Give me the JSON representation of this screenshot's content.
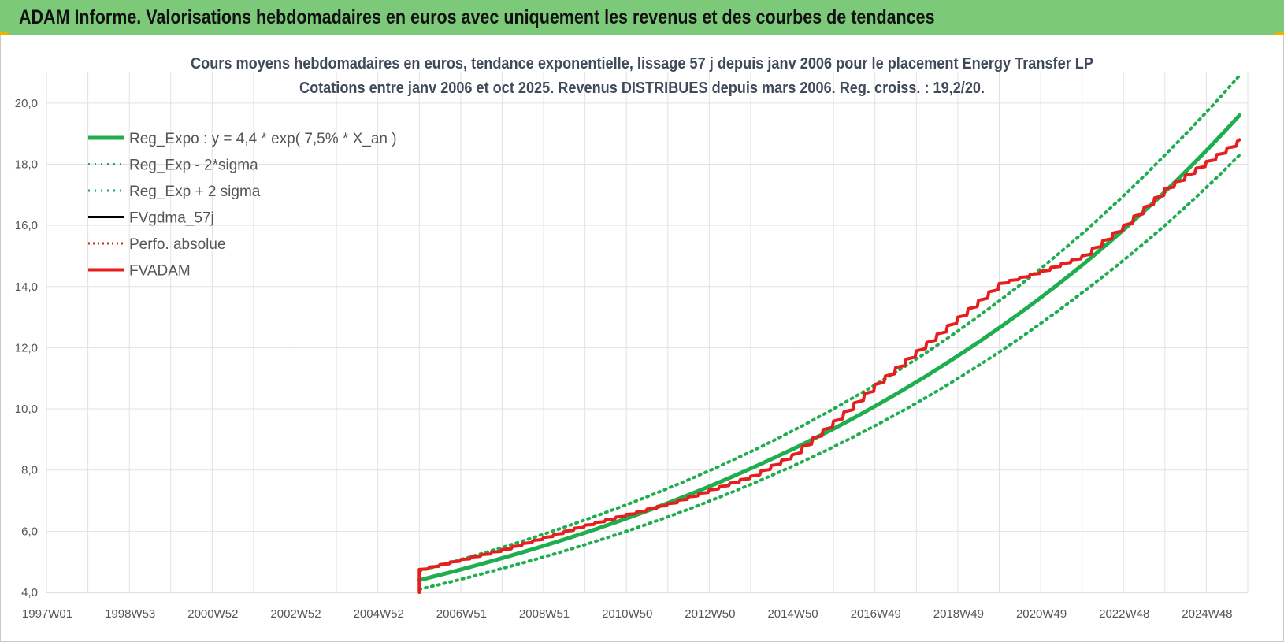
{
  "banner": {
    "title": "ADAM Informe. Valorisations hebdomadaires en euros avec uniquement les revenus et des courbes de tendances"
  },
  "chart_data": {
    "type": "line",
    "title_line1": "Cours moyens hebdomadaires en euros, tendance exponentielle, lissage 57 j depuis janv 2006 pour le placement Energy Transfer LP",
    "title_line2": "Cotations entre janv 2006 et oct 2025. Revenus DISTRIBUES depuis mars 2006. Reg. croiss. : 19,2/20.",
    "x_tick_labels": [
      "1997W01",
      "1998W53",
      "2000W52",
      "2002W52",
      "2004W52",
      "2006W51",
      "2008W51",
      "2010W50",
      "2012W50",
      "2014W50",
      "2016W49",
      "2018W49",
      "2020W49",
      "2022W48",
      "2024W48"
    ],
    "y_tick_labels": [
      "4,0",
      "6,0",
      "8,0",
      "10,0",
      "12,0",
      "14,0",
      "16,0",
      "18,0",
      "20,0"
    ],
    "x_range_years": [
      1997.0,
      2026.0
    ],
    "ylim": [
      4.0,
      21.0
    ],
    "y_ticks": [
      4,
      6,
      8,
      10,
      12,
      14,
      16,
      18,
      20
    ],
    "grid": true,
    "legend_position": "top-left",
    "colors": {
      "reg_expo": "#1fae4f",
      "sigma": "#1fae4f",
      "fvgdma": "#000000",
      "perfo": "#e02020",
      "fvadam": "#e61e1e",
      "grid": "#e2e2e2"
    },
    "series": [
      {
        "name": "Reg_Expo : y = 4,4 * exp( 7,5% *  X_an )",
        "style": "solid-thick",
        "x": [
          2006.0,
          2008.0,
          2010.0,
          2012.0,
          2014.0,
          2016.0,
          2018.0,
          2020.0,
          2022.0,
          2024.0,
          2025.8
        ],
        "y": [
          4.4,
          5.12,
          5.95,
          6.92,
          8.05,
          9.35,
          10.88,
          12.65,
          14.7,
          17.1,
          19.6
        ]
      },
      {
        "name": "Reg_Exp - 2*sigma",
        "style": "dotted",
        "x": [
          2006.0,
          2008.0,
          2010.0,
          2012.0,
          2014.0,
          2016.0,
          2018.0,
          2020.0,
          2022.0,
          2024.0,
          2025.8
        ],
        "y": [
          4.1,
          4.78,
          5.56,
          6.47,
          7.53,
          8.76,
          10.19,
          11.86,
          13.8,
          16.0,
          18.3
        ]
      },
      {
        "name": "Reg_Exp + 2 sigma",
        "style": "dotted",
        "x": [
          2006.0,
          2008.0,
          2010.0,
          2012.0,
          2014.0,
          2016.0,
          2018.0,
          2020.0,
          2022.0,
          2024.0,
          2025.8
        ],
        "y": [
          4.7,
          5.47,
          6.37,
          7.4,
          8.6,
          10.0,
          11.63,
          13.53,
          15.73,
          18.3,
          20.9
        ]
      },
      {
        "name": "FVgdma_57j",
        "style": "solid",
        "x": [
          2006.0,
          2008.0,
          2010.0,
          2012.0,
          2014.0,
          2015.0,
          2016.0,
          2017.0,
          2018.0,
          2019.0,
          2020.0,
          2021.0,
          2022.0,
          2023.0,
          2024.0,
          2025.8
        ],
        "y": [
          4.75,
          5.4,
          6.2,
          6.9,
          7.8,
          8.5,
          9.6,
          10.8,
          11.9,
          13.0,
          14.1,
          14.5,
          15.0,
          16.0,
          17.2,
          18.8
        ]
      },
      {
        "name": "Perfo. absolue",
        "style": "dotted",
        "x": [
          2006.0,
          2008.0,
          2010.0,
          2012.0,
          2014.0,
          2015.0,
          2016.0,
          2017.0,
          2018.0,
          2019.0,
          2020.0,
          2021.0,
          2022.0,
          2023.0,
          2024.0,
          2025.8
        ],
        "y": [
          4.75,
          5.4,
          6.2,
          6.9,
          7.8,
          8.5,
          9.6,
          10.8,
          11.9,
          13.0,
          14.1,
          14.5,
          15.0,
          16.0,
          17.2,
          18.8
        ]
      },
      {
        "name": "FVADAM",
        "style": "solid-thick-stepped",
        "x": [
          2006.0,
          2006.0,
          2008.0,
          2010.0,
          2012.0,
          2014.0,
          2015.0,
          2016.0,
          2017.0,
          2018.0,
          2019.0,
          2020.0,
          2021.0,
          2022.0,
          2023.0,
          2024.0,
          2025.8
        ],
        "y": [
          4.0,
          4.75,
          5.4,
          6.2,
          6.9,
          7.8,
          8.5,
          9.6,
          10.8,
          11.9,
          13.0,
          14.1,
          14.5,
          15.0,
          16.0,
          17.2,
          18.8
        ]
      }
    ]
  }
}
